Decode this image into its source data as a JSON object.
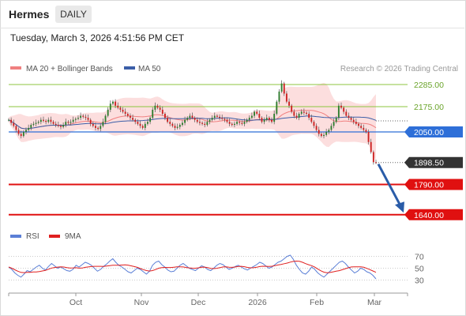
{
  "header": {
    "ticker": "Hermes",
    "timeframe": "DAILY",
    "timestamp": "Tuesday, March 3, 2026 4:51:56 PM CET"
  },
  "legend": {
    "ma20": "MA 20 + Bollinger Bands",
    "ma50": "MA 50",
    "ma20_color": "#f08080",
    "ma50_color": "#3b5ea8",
    "credit": "Research © 2026 Trading Central"
  },
  "rsi_legend": {
    "rsi": "RSI",
    "ma9": "9MA",
    "rsi_color": "#5b7fd6",
    "ma9_color": "#e02020"
  },
  "chart_data": [
    {
      "type": "candlestick",
      "x_labels": [
        "Oct",
        "Nov",
        "Dec",
        "2026",
        "Feb",
        "Mar"
      ],
      "ylim": [
        1600,
        2320
      ],
      "levels": [
        {
          "value": 2285.0,
          "label": "2285.00",
          "kind": "resistance",
          "color": "#8cc63f"
        },
        {
          "value": 2175.0,
          "label": "2175.00",
          "kind": "resistance",
          "color": "#8cc63f"
        },
        {
          "value": 2050.0,
          "label": "2050.00",
          "kind": "pivot",
          "color": "#2e6fd8"
        },
        {
          "value": 1898.5,
          "label": "1898.50",
          "kind": "last",
          "color": "#333333"
        },
        {
          "value": 1790.0,
          "label": "1790.00",
          "kind": "support",
          "color": "#e01010"
        },
        {
          "value": 1640.0,
          "label": "1640.00",
          "kind": "support",
          "color": "#e01010"
        }
      ],
      "closes": [
        2110,
        2095,
        2080,
        2060,
        2040,
        2030,
        2050,
        2060,
        2070,
        2085,
        2090,
        2095,
        2100,
        2110,
        2105,
        2100,
        2110,
        2100,
        2090,
        2085,
        2080,
        2075,
        2085,
        2100,
        2095,
        2100,
        2110,
        2115,
        2120,
        2130,
        2125,
        2120,
        2110,
        2090,
        2080,
        2070,
        2065,
        2080,
        2100,
        2130,
        2160,
        2190,
        2200,
        2180,
        2170,
        2160,
        2150,
        2140,
        2130,
        2120,
        2110,
        2100,
        2090,
        2080,
        2070,
        2090,
        2100,
        2120,
        2160,
        2180,
        2170,
        2160,
        2140,
        2120,
        2100,
        2090,
        2080,
        2070,
        2075,
        2085,
        2095,
        2110,
        2120,
        2130,
        2120,
        2110,
        2100,
        2095,
        2090,
        2085,
        2100,
        2110,
        2120,
        2130,
        2125,
        2120,
        2115,
        2110,
        2100,
        2090,
        2085,
        2090,
        2100,
        2095,
        2090,
        2100,
        2110,
        2120,
        2130,
        2150,
        2140,
        2120,
        2100,
        2110,
        2120,
        2110,
        2100,
        2140,
        2200,
        2250,
        2290,
        2240,
        2200,
        2180,
        2150,
        2130,
        2120,
        2140,
        2150,
        2145,
        2140,
        2120,
        2100,
        2080,
        2060,
        2040,
        2030,
        2035,
        2050,
        2060,
        2080,
        2100,
        2120,
        2180,
        2170,
        2150,
        2130,
        2120,
        2110,
        2100,
        2090,
        2080,
        2070,
        2060,
        2050,
        2000,
        1950,
        1900,
        1898.5
      ],
      "rsi": {
        "ylim": [
          20,
          80
        ],
        "ticks": [
          70,
          50,
          30
        ],
        "values": [
          52,
          48,
          42,
          38,
          35,
          40,
          46,
          44,
          48,
          52,
          55,
          50,
          47,
          53,
          58,
          54,
          50,
          52,
          49,
          46,
          45,
          48,
          55,
          52,
          56,
          60,
          58,
          55,
          50,
          45,
          48,
          53,
          57,
          62,
          66,
          60,
          55,
          52,
          48,
          44,
          42,
          46,
          50,
          48,
          44,
          40,
          45,
          55,
          60,
          62,
          56,
          52,
          47,
          44,
          45,
          50,
          55,
          58,
          54,
          50,
          48,
          46,
          50,
          54,
          52,
          48,
          46,
          50,
          55,
          58,
          56,
          52,
          48,
          50,
          53,
          55,
          52,
          49,
          47,
          50,
          53,
          56,
          60,
          58,
          54,
          50,
          52,
          56,
          60,
          62,
          66,
          70,
          72,
          65,
          55,
          48,
          42,
          40,
          45,
          52,
          48,
          42,
          38,
          35,
          40,
          45,
          50,
          55,
          60,
          62,
          58,
          52,
          47,
          42,
          45,
          50,
          48,
          44,
          42,
          38,
          32
        ]
      }
    }
  ]
}
